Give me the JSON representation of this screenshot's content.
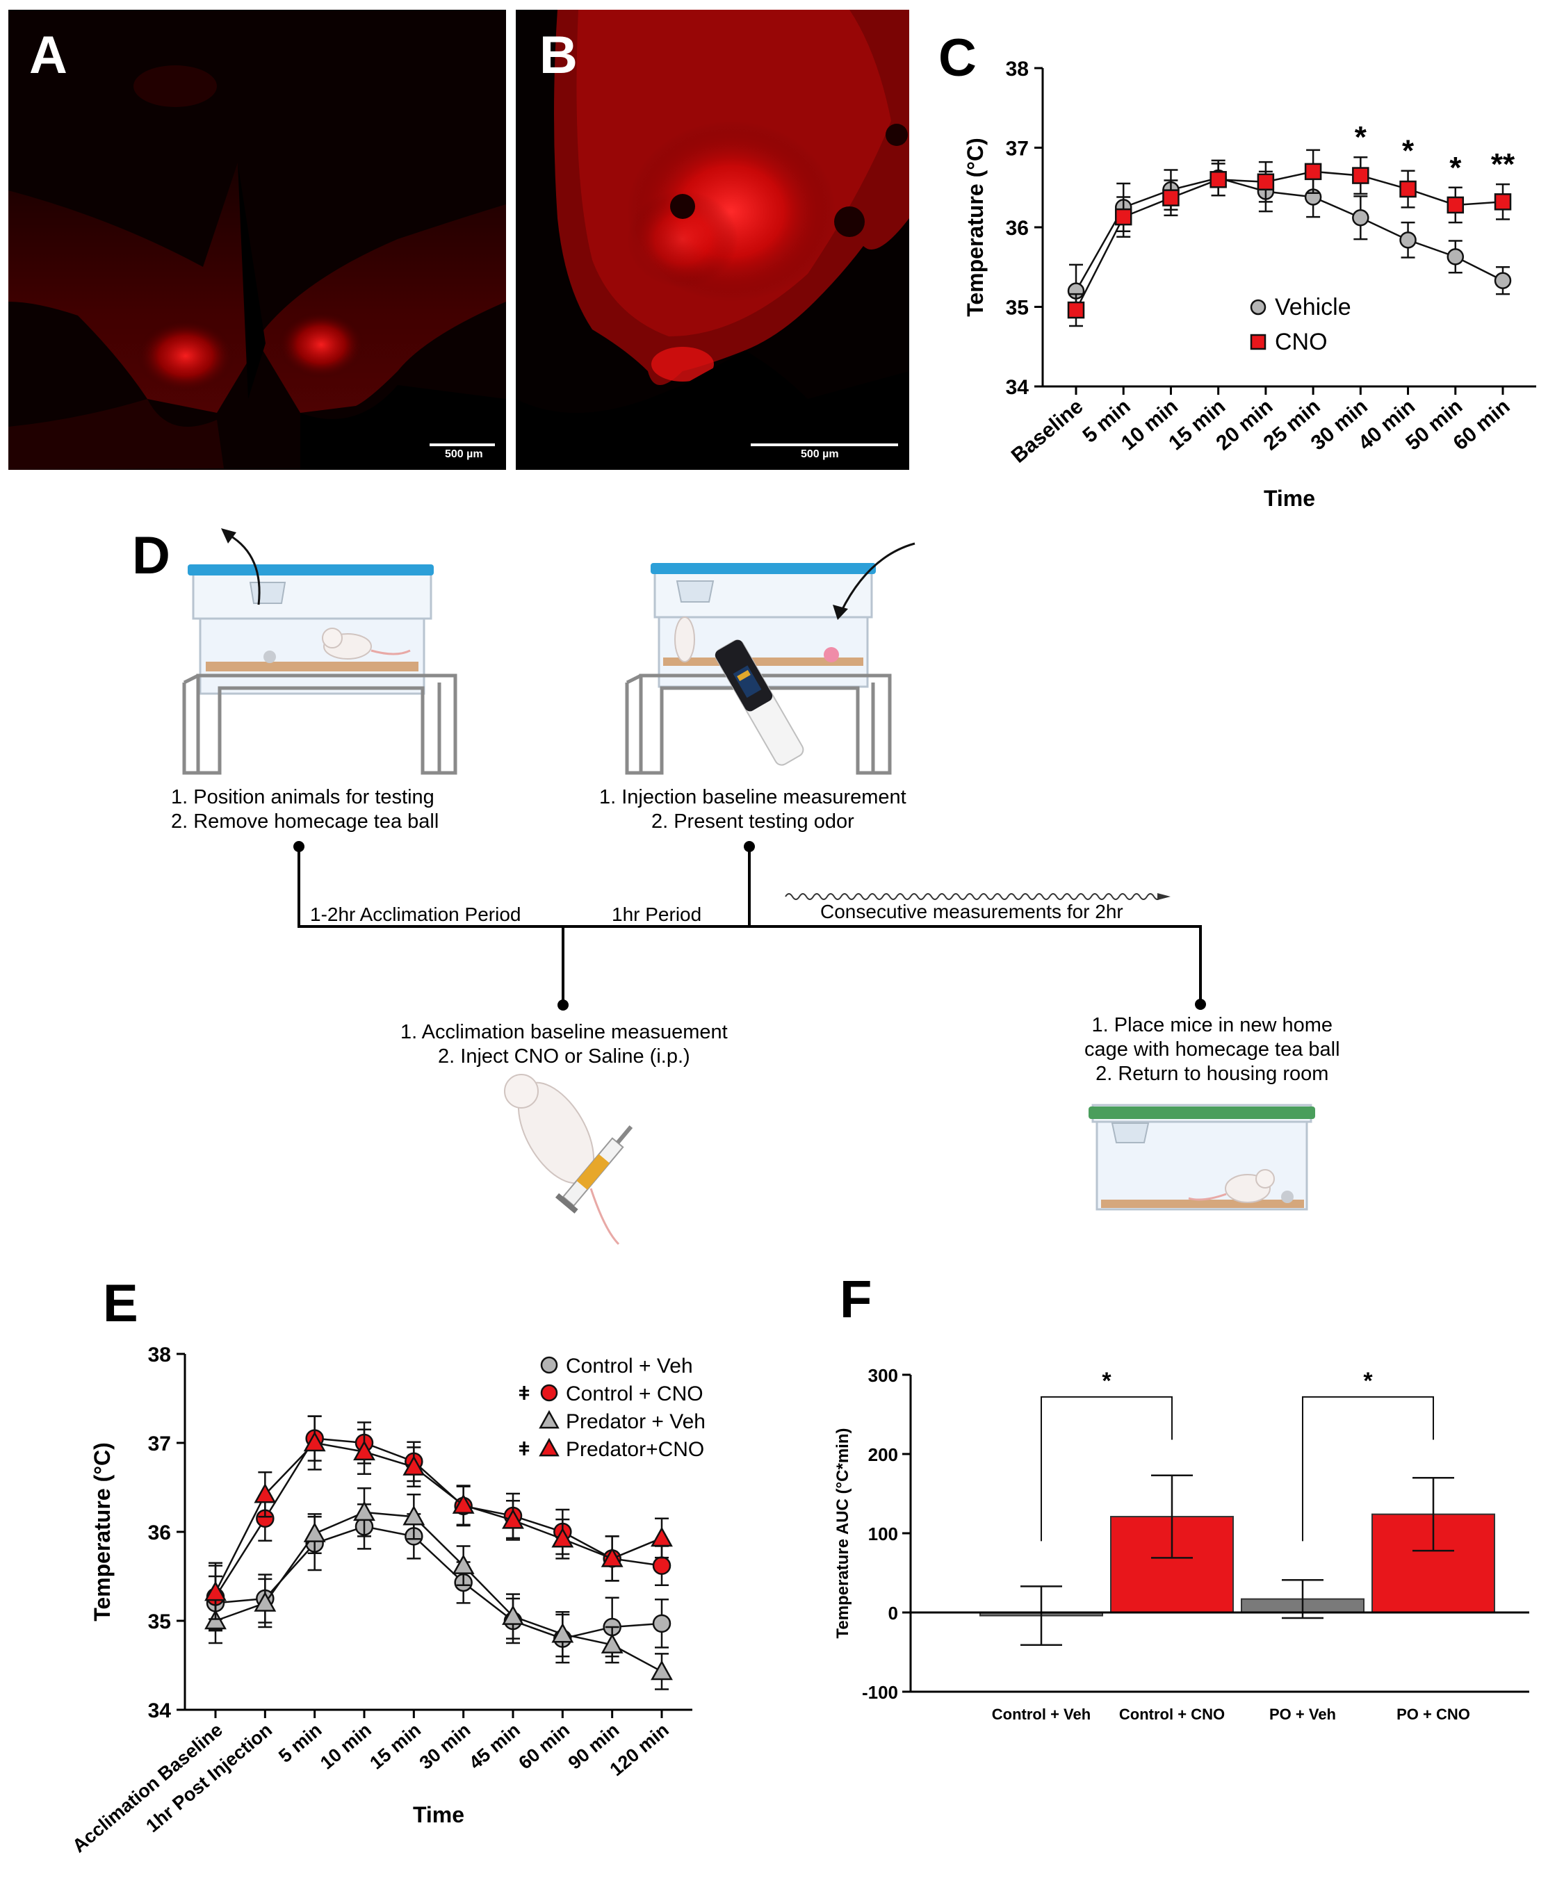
{
  "panel_letters": {
    "A": "A",
    "B": "B",
    "C": "C",
    "D": "D",
    "E": "E",
    "F": "F"
  },
  "micrographs": {
    "A": {
      "scale_bar_label": "500 µm"
    },
    "B": {
      "scale_bar_label": "500 µm"
    }
  },
  "protocol": {
    "step1": [
      "1.  Position animals for testing",
      "2.  Remove homecage tea ball"
    ],
    "step2": [
      "1.  Injection baseline measurement",
      "2.  Present testing odor"
    ],
    "step3": [
      "1.  Acclimation baseline measuement",
      "2.  Inject CNO or Saline (i.p.)"
    ],
    "step4": [
      "1.  Place mice in new home",
      "cage with homecage tea ball",
      "2.  Return to housing room"
    ],
    "period1": "1-2hr Acclimation Period",
    "period2": "1hr Period",
    "period3": "Consecutive measurements for 2hr"
  },
  "colors": {
    "cno_red": "#e8161b",
    "vehicle_grey": "#b4b4b4",
    "dark_grey": "#7a7a7a",
    "lid_blue": "#2c9fd8",
    "lid_green": "#4a9e5c"
  },
  "chart_data": [
    {
      "panel": "C",
      "type": "line",
      "xlabel": "Time",
      "ylabel": "Temperature (°C)",
      "ylim": [
        34,
        38
      ],
      "yticks": [
        34,
        35,
        36,
        37,
        38
      ],
      "categories": [
        "Baseline",
        "5 min",
        "10 min",
        "15 min",
        "20 min",
        "25 min",
        "30 min",
        "40 min",
        "50 min",
        "60 min"
      ],
      "series": [
        {
          "name": "Vehicle",
          "marker": "circle",
          "color": "#b4b4b4",
          "values": [
            35.2,
            36.25,
            36.47,
            36.62,
            36.45,
            36.38,
            36.12,
            35.84,
            35.63,
            35.33
          ],
          "errors": [
            0.33,
            0.3,
            0.25,
            0.22,
            0.25,
            0.25,
            0.27,
            0.22,
            0.2,
            0.17
          ]
        },
        {
          "name": "CNO",
          "marker": "square",
          "color": "#e8161b",
          "values": [
            34.96,
            36.13,
            36.37,
            36.6,
            36.57,
            36.7,
            36.65,
            36.48,
            36.28,
            36.32
          ],
          "errors": [
            0.2,
            0.25,
            0.22,
            0.2,
            0.25,
            0.27,
            0.23,
            0.23,
            0.22,
            0.22
          ]
        }
      ],
      "annotations": [
        {
          "category": "30 min",
          "text": "*"
        },
        {
          "category": "40 min",
          "text": "*"
        },
        {
          "category": "50 min",
          "text": "*"
        },
        {
          "category": "60 min",
          "text": "**"
        }
      ],
      "legend": "center-right"
    },
    {
      "panel": "E",
      "type": "line",
      "xlabel": "Time",
      "ylabel": "Temperature (°C)",
      "ylim": [
        34,
        38
      ],
      "yticks": [
        34,
        35,
        36,
        37,
        38
      ],
      "categories": [
        "Acclimation Baseline",
        "1hr Post Injection",
        "5 min",
        "10 min",
        "15 min",
        "30 min",
        "45 min",
        "60 min",
        "90 min",
        "120 min"
      ],
      "series": [
        {
          "name": "Control + Veh",
          "marker": "circle",
          "color": "#b4b4b4",
          "prefix": "",
          "values": [
            35.2,
            35.25,
            35.87,
            36.06,
            35.95,
            35.43,
            35.0,
            34.8,
            34.93,
            34.97
          ],
          "errors": [
            0.3,
            0.27,
            0.3,
            0.25,
            0.25,
            0.23,
            0.25,
            0.27,
            0.33,
            0.27
          ]
        },
        {
          "name": "Control + CNO",
          "marker": "circle",
          "color": "#e8161b",
          "prefix": "ǂ",
          "values": [
            35.27,
            36.15,
            37.05,
            37.0,
            36.79,
            36.29,
            36.18,
            36.0,
            35.7,
            35.62
          ],
          "errors": [
            0.38,
            0.25,
            0.25,
            0.23,
            0.22,
            0.22,
            0.25,
            0.25,
            0.25,
            0.22
          ]
        },
        {
          "name": "Predator + Veh",
          "marker": "triangle",
          "color": "#b4b4b4",
          "prefix": "",
          "values": [
            35.0,
            35.2,
            35.98,
            36.22,
            36.17,
            35.62,
            35.05,
            34.85,
            34.73,
            34.43
          ],
          "errors": [
            0.25,
            0.27,
            0.22,
            0.27,
            0.25,
            0.22,
            0.25,
            0.25,
            0.2,
            0.2
          ]
        },
        {
          "name": "Predator+CNO",
          "marker": "triangle",
          "color": "#e8161b",
          "prefix": "ǂ",
          "values": [
            35.32,
            36.42,
            37.0,
            36.9,
            36.73,
            36.3,
            36.13,
            35.92,
            35.7,
            35.93
          ],
          "errors": [
            0.3,
            0.25,
            0.3,
            0.25,
            0.22,
            0.22,
            0.22,
            0.22,
            0.25,
            0.22
          ]
        }
      ],
      "legend": "top-right"
    },
    {
      "panel": "F",
      "type": "bar",
      "ylabel": "Temperature AUC (°C*min)",
      "ylim": [
        -100,
        300
      ],
      "yticks": [
        -100,
        0,
        100,
        200,
        300
      ],
      "categories": [
        "Control + Veh",
        "Control + CNO",
        "PO + Veh",
        "PO + CNO"
      ],
      "values": [
        -4,
        121,
        17,
        124
      ],
      "errors": [
        37,
        52,
        24,
        46
      ],
      "colors": [
        "#7a7a7a",
        "#e8161b",
        "#7a7a7a",
        "#e8161b"
      ],
      "significance": [
        {
          "from": "Control + Veh",
          "to": "Control + CNO",
          "text": "*"
        },
        {
          "from": "PO + Veh",
          "to": "PO + CNO",
          "text": "*"
        }
      ]
    }
  ]
}
